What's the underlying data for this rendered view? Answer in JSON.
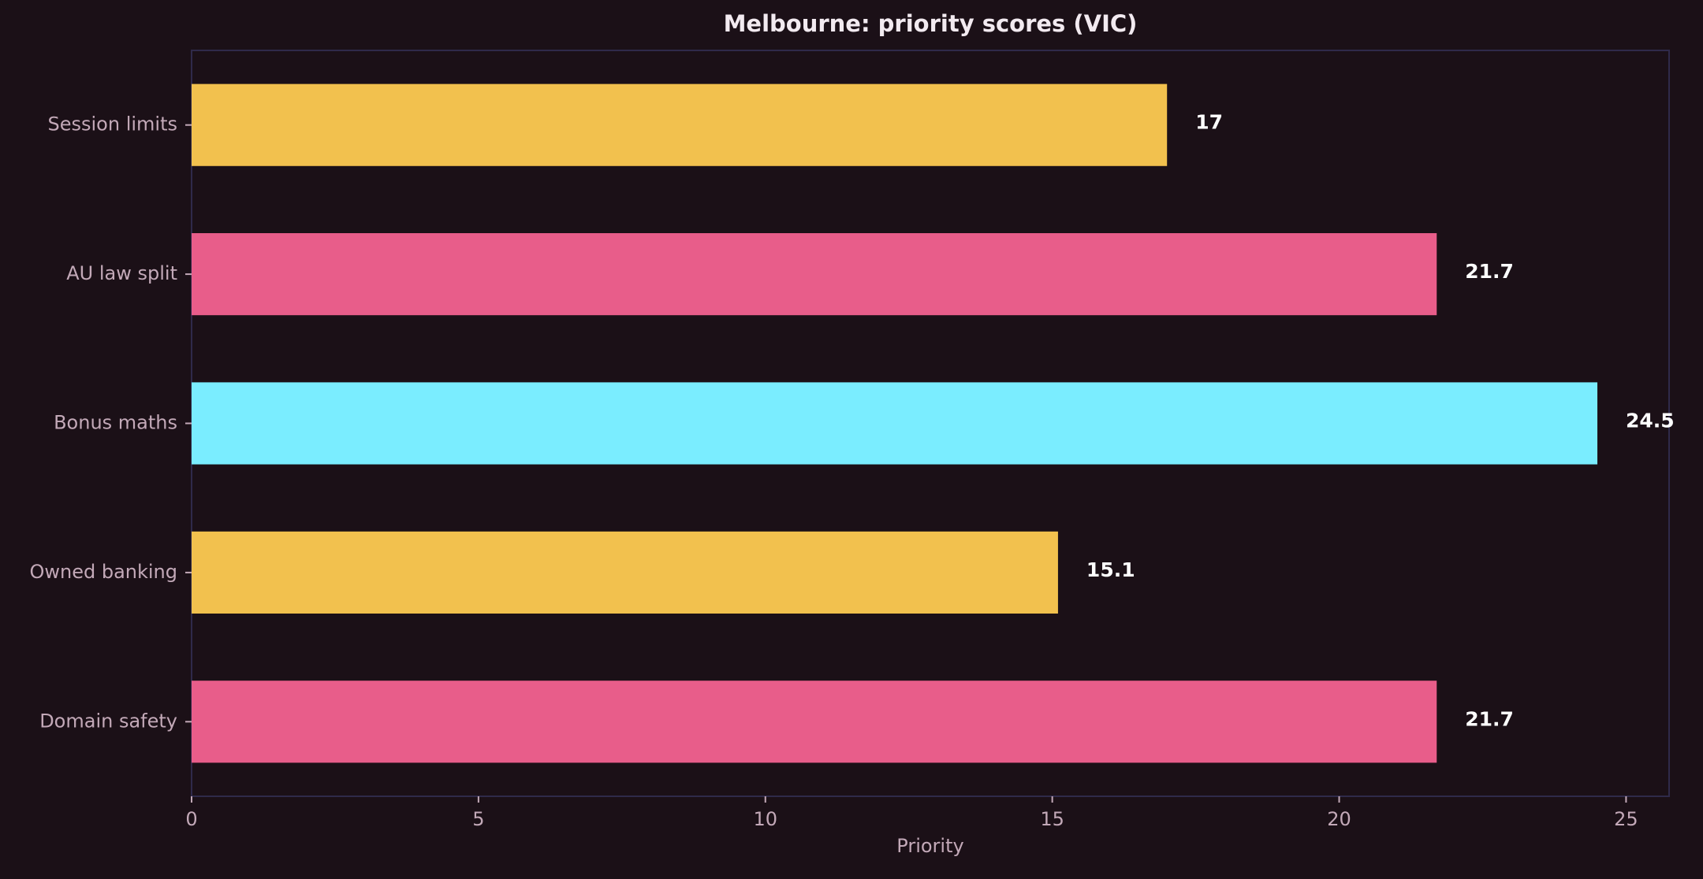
{
  "chart_data": {
    "type": "bar",
    "orientation": "horizontal",
    "title": "Melbourne: priority scores (VIC)",
    "xlabel": "Priority",
    "ylabel": "",
    "categories": [
      "Session limits",
      "AU law split",
      "Bonus maths",
      "Owned banking",
      "Domain safety"
    ],
    "values": [
      17,
      21.7,
      24.5,
      15.1,
      21.7
    ],
    "value_labels": [
      "17",
      "21.7",
      "24.5",
      "15.1",
      "21.7"
    ],
    "bar_colors": [
      "#f2c14e",
      "#e85d8a",
      "#7aedff",
      "#f2c14e",
      "#e85d8a"
    ],
    "xlim": [
      0,
      25.75
    ],
    "xticks": [
      0,
      5,
      10,
      15,
      20,
      25
    ],
    "xtick_labels": [
      "0",
      "5",
      "10",
      "15",
      "20",
      "25"
    ],
    "grid": false,
    "legend": "none",
    "colors": {
      "background": "#1b1017",
      "frame": "#2f2a4a",
      "text": "#c3a9b8",
      "title": "#f2eaf0",
      "value_label": "#ffffff"
    }
  }
}
